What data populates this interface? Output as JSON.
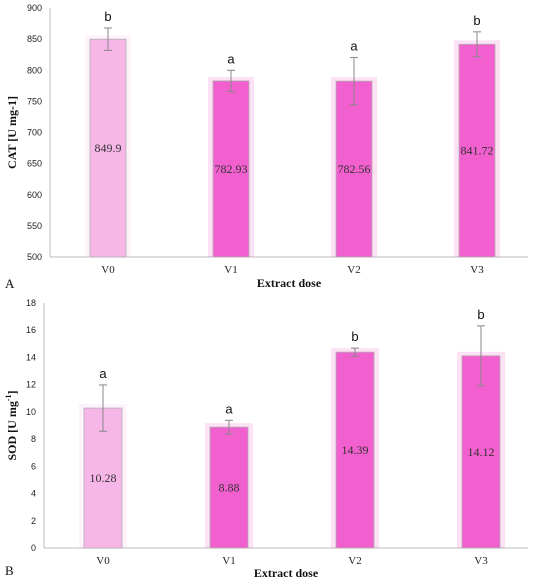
{
  "chart_data": [
    {
      "panel": "A",
      "type": "bar",
      "categories": [
        "V0",
        "V1",
        "V2",
        "V3"
      ],
      "values": [
        849.9,
        782.93,
        782.56,
        841.72
      ],
      "value_labels": [
        "849.9",
        "782.93",
        "782.56",
        "841.72"
      ],
      "errors": [
        18,
        17,
        38,
        20
      ],
      "significance": [
        "b",
        "a",
        "a",
        "b"
      ],
      "colors": [
        "#f7b6e8",
        "#f25fcf",
        "#f25fcf",
        "#f25fcf"
      ],
      "xlabel": "Extract dose",
      "ylabel": "CAT [U mg-1]",
      "ylim": [
        500,
        900
      ],
      "yticks": [
        500,
        550,
        600,
        650,
        700,
        750,
        800,
        850,
        900
      ],
      "grid": false,
      "legend": "none"
    },
    {
      "panel": "B",
      "type": "bar",
      "categories": [
        "V0",
        "V1",
        "V2",
        "V3"
      ],
      "values": [
        10.28,
        8.88,
        14.39,
        14.12
      ],
      "value_labels": [
        "10.28",
        "8.88",
        "14.39",
        "14.12"
      ],
      "errors": [
        1.7,
        0.5,
        0.3,
        2.2
      ],
      "significance": [
        "a",
        "a",
        "b",
        "b"
      ],
      "colors": [
        "#f7b6e8",
        "#f25fcf",
        "#f25fcf",
        "#f25fcf"
      ],
      "xlabel": "Extract dose",
      "ylabel": "SOD [U mg-1]",
      "ylim": [
        0,
        18
      ],
      "yticks": [
        0,
        2,
        4,
        6,
        8,
        10,
        12,
        14,
        16,
        18
      ],
      "grid": false,
      "legend": "none"
    }
  ]
}
